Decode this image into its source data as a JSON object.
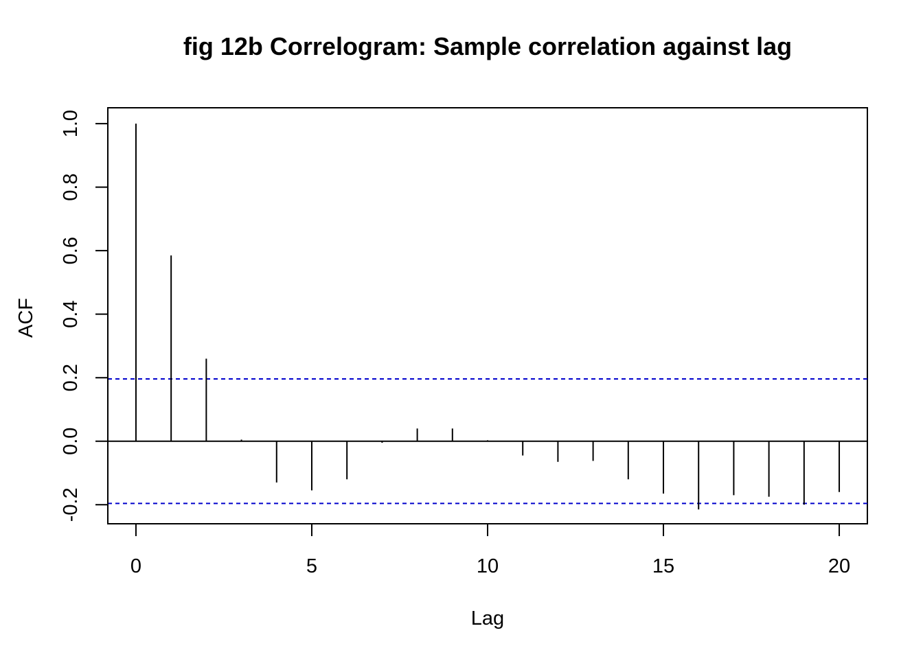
{
  "chart_data": {
    "type": "bar",
    "title": "fig 12b Correlogram: Sample correlation against lag",
    "xlabel": "Lag",
    "ylabel": "ACF",
    "x": [
      0,
      1,
      2,
      3,
      4,
      5,
      6,
      7,
      8,
      9,
      10,
      11,
      12,
      13,
      14,
      15,
      16,
      17,
      18,
      19,
      20
    ],
    "values": [
      1.0,
      0.585,
      0.26,
      0.005,
      -0.13,
      -0.155,
      -0.12,
      -0.005,
      0.04,
      0.04,
      0.003,
      -0.045,
      -0.065,
      -0.062,
      -0.12,
      -0.165,
      -0.215,
      -0.17,
      -0.175,
      -0.2,
      -0.16
    ],
    "xlim": [
      -0.8,
      20.8
    ],
    "ylim": [
      -0.26,
      1.05
    ],
    "xticks": [
      0,
      5,
      10,
      15,
      20
    ],
    "xtick_labels": [
      "0",
      "5",
      "10",
      "15",
      "20"
    ],
    "yticks": [
      -0.2,
      0.0,
      0.2,
      0.4,
      0.6,
      0.8,
      1.0
    ],
    "ytick_labels": [
      "-0.2",
      "0.0",
      "0.2",
      "0.4",
      "0.6",
      "0.8",
      "1.0"
    ],
    "confidence_band": 0.196,
    "confidence_color": "#0000cc",
    "bar_color": "#000000"
  }
}
